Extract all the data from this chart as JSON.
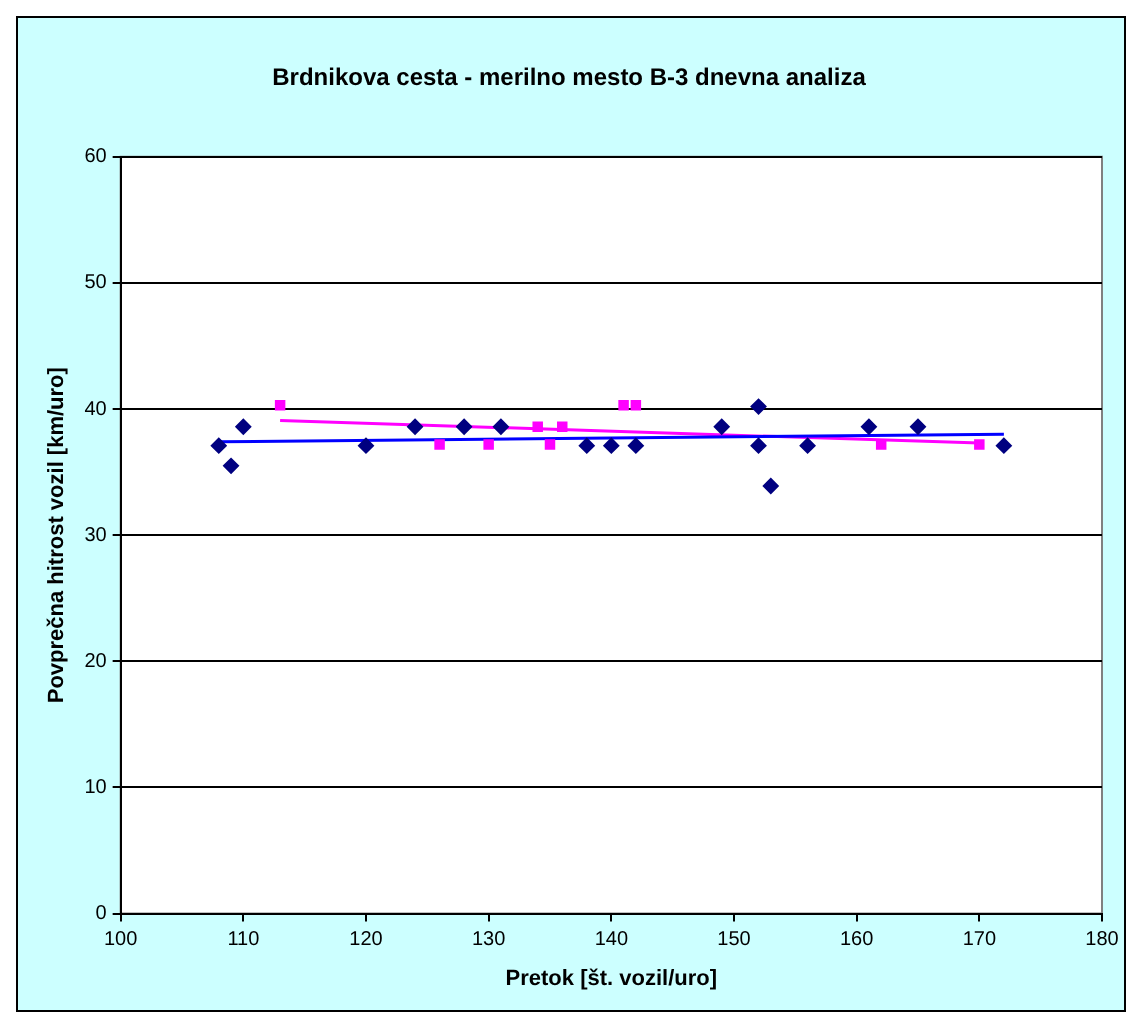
{
  "chart_data": {
    "type": "scatter",
    "title": "Brdnikova cesta - merilno mesto B-3 dnevna analiza",
    "xlabel": "Pretok [št. vozil/uro]",
    "ylabel": "Povprečna hitrost vozil [km/uro]",
    "xlim": [
      100,
      180
    ],
    "xticks": [
      100,
      110,
      120,
      130,
      140,
      150,
      160,
      170,
      180
    ],
    "ylim": [
      0,
      60
    ],
    "yticks": [
      0,
      10,
      20,
      30,
      40,
      50,
      60
    ],
    "grid": "y",
    "legend": false,
    "series": [
      {
        "type": "scatter",
        "marker": "diamond",
        "color": "#000080",
        "x": [
          108,
          109,
          110,
          120,
          124,
          128,
          131,
          138,
          140,
          142,
          149,
          152,
          152,
          153,
          156,
          161,
          165,
          172
        ],
        "values": [
          37.1,
          35.5,
          38.6,
          37.1,
          38.6,
          38.6,
          38.6,
          37.1,
          37.1,
          37.1,
          38.6,
          40.2,
          37.1,
          33.9,
          37.1,
          38.6,
          38.6,
          37.1
        ]
      },
      {
        "type": "scatter",
        "marker": "square",
        "color": "#ff00ff",
        "x": [
          113,
          126,
          130,
          134,
          135,
          136,
          141,
          142,
          162,
          170
        ],
        "values": [
          40.3,
          37.2,
          37.2,
          38.6,
          37.2,
          38.6,
          40.3,
          40.3,
          37.2,
          37.2
        ]
      },
      {
        "type": "line",
        "marker": "none",
        "line_style": "solid",
        "color": "#0000ff",
        "x": [
          108,
          172
        ],
        "values": [
          37.4,
          38.0
        ]
      },
      {
        "type": "line",
        "marker": "none",
        "line_style": "solid",
        "color": "#ff00ff",
        "x": [
          113,
          170
        ],
        "values": [
          39.1,
          37.3
        ]
      }
    ]
  }
}
